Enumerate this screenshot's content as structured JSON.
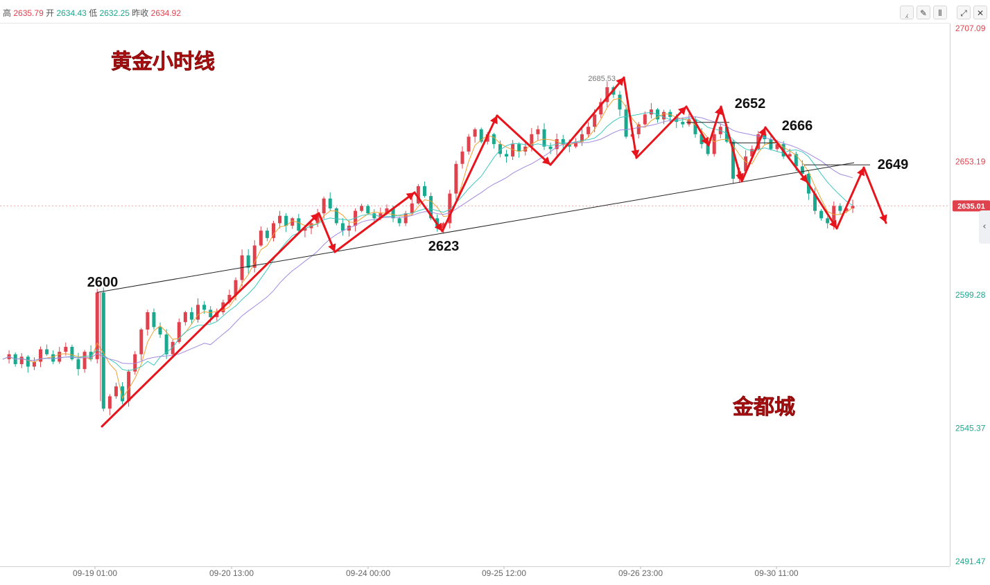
{
  "header": {
    "high_label": "高",
    "high_value": "2635.79",
    "open_label": "开",
    "open_value": "2634.43",
    "low_label": "低",
    "low_value": "2632.25",
    "prev_close_label": "昨收",
    "prev_close_value": "2634.92"
  },
  "toolbar": {
    "icons": [
      "line-chart-icon",
      "draw-tool-icon",
      "candlestick-icon",
      "fullscreen-icon",
      "close-icon"
    ],
    "glyphs": [
      "⁁",
      "✎",
      "⫴",
      "⤢",
      "✕"
    ]
  },
  "side_tab": {
    "glyph": "‹"
  },
  "chart_data": {
    "type": "candlestick",
    "title": "黄金小时线",
    "watermark": "金都城",
    "y_ticks": [
      "2707.09",
      "2653.19",
      "2599.28",
      "2545.37",
      "2491.47"
    ],
    "x_ticks": [
      "09-19 01:00",
      "09-20 13:00",
      "09-24 00:00",
      "09-25 12:00",
      "09-26 23:00",
      "09-30 11:00"
    ],
    "ylim": [
      2491.47,
      2707.09
    ],
    "last_price": "2635.01",
    "high_marker": "2685.53",
    "annotations": [
      "2600",
      "2623",
      "2652",
      "2666",
      "2649"
    ],
    "colors": {
      "up": "#e0424d",
      "down": "#1aa88f",
      "arrow": "#e8141c",
      "ma_fast": "#f0a030",
      "ma_mid": "#3cc8c0",
      "ma_slow": "#a38ae0"
    },
    "series": [
      {
        "name": "price_path",
        "values": [
          2573,
          2575,
          2571,
          2574,
          2570,
          2572,
          2577,
          2575,
          2572,
          2576,
          2578,
          2573,
          2569,
          2576,
          2573,
          2600,
          2553,
          2558,
          2562,
          2556,
          2568,
          2575,
          2585,
          2592,
          2586,
          2583,
          2575,
          2580,
          2588,
          2592,
          2589,
          2595,
          2593,
          2590,
          2592,
          2596,
          2599,
          2605,
          2615,
          2610,
          2619,
          2625,
          2622,
          2628,
          2631,
          2627,
          2630,
          2625,
          2626,
          2628,
          2632,
          2638,
          2634,
          2628,
          2625,
          2627,
          2633,
          2635,
          2632,
          2630,
          2632,
          2634,
          2630,
          2628,
          2632,
          2636,
          2643,
          2639,
          2630,
          2626,
          2628,
          2640,
          2652,
          2657,
          2663,
          2666,
          2661,
          2664,
          2660,
          2656,
          2655,
          2660,
          2657,
          2659,
          2664,
          2666,
          2659,
          2658,
          2662,
          2660,
          2659,
          2661,
          2664,
          2667,
          2672,
          2677,
          2683,
          2680,
          2674,
          2663,
          2664,
          2668,
          2672,
          2674,
          2670,
          2673,
          2671,
          2669,
          2668,
          2670,
          2664,
          2660,
          2656,
          2664,
          2667,
          2661,
          2646,
          2649,
          2655,
          2658,
          2664,
          2662,
          2658,
          2660,
          2655,
          2656,
          2651,
          2648,
          2640,
          2633,
          2630,
          2628,
          2635,
          2633,
          2634,
          2635
        ]
      }
    ]
  }
}
